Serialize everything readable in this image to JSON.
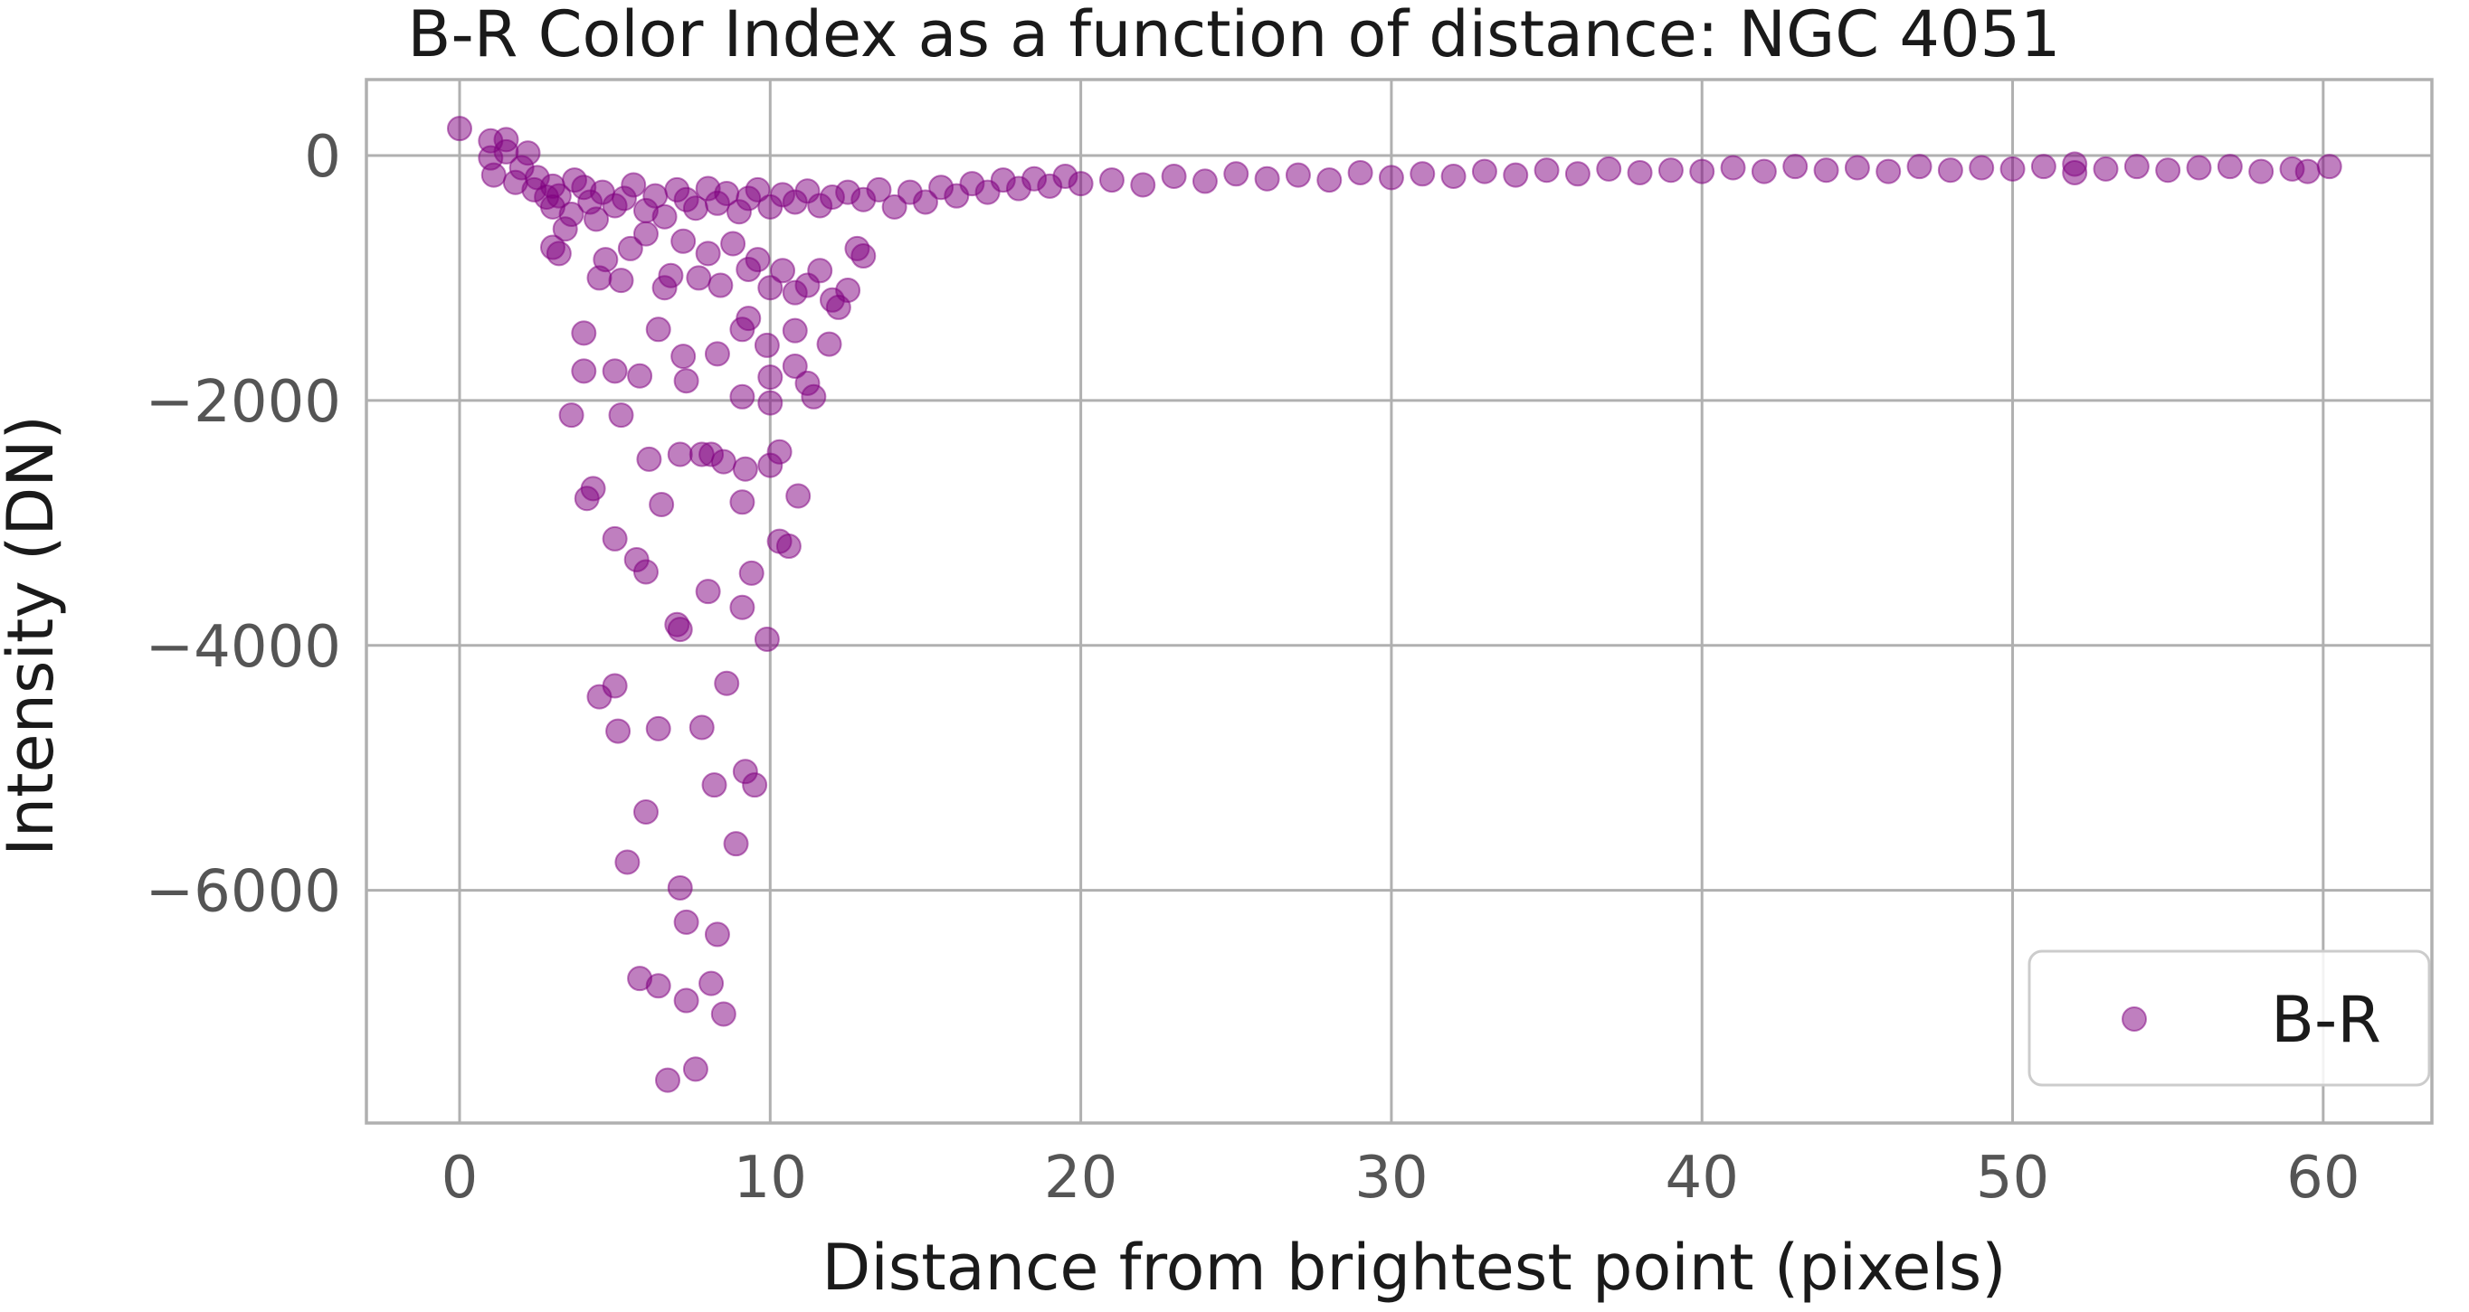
{
  "chart_data": {
    "type": "scatter",
    "title": "B-R Color Index as a function of distance: NGC 4051",
    "xlabel": "Distance from brightest point (pixels)",
    "ylabel": "Intensity (DN)",
    "xlim": [
      -3,
      63.5
    ],
    "ylim": [
      -7900,
      620
    ],
    "xticks": [
      0,
      10,
      20,
      30,
      40,
      50,
      60
    ],
    "yticks": [
      0,
      -2000,
      -4000,
      -6000
    ],
    "xtick_labels": [
      "0",
      "10",
      "20",
      "30",
      "40",
      "50",
      "60"
    ],
    "ytick_labels": [
      "0",
      "−2000",
      "−4000",
      "−6000"
    ],
    "grid": true,
    "legend": {
      "placement": "bottom-right",
      "entries": [
        "B-R"
      ]
    },
    "series": [
      {
        "name": "B-R",
        "color": "#800080",
        "alpha": 0.5,
        "points": [
          [
            0.0,
            220
          ],
          [
            1.0,
            120
          ],
          [
            1.0,
            -20
          ],
          [
            1.1,
            -160
          ],
          [
            1.5,
            130
          ],
          [
            1.5,
            30
          ],
          [
            1.8,
            -220
          ],
          [
            2.0,
            -100
          ],
          [
            2.2,
            20
          ],
          [
            2.4,
            -280
          ],
          [
            2.5,
            -180
          ],
          [
            2.8,
            -340
          ],
          [
            3.0,
            -420
          ],
          [
            3.0,
            -250
          ],
          [
            3.2,
            -330
          ],
          [
            3.4,
            -600
          ],
          [
            3.6,
            -480
          ],
          [
            3.7,
            -200
          ],
          [
            4.0,
            -260
          ],
          [
            4.2,
            -380
          ],
          [
            4.4,
            -520
          ],
          [
            4.6,
            -300
          ],
          [
            5.0,
            -410
          ],
          [
            5.3,
            -350
          ],
          [
            5.6,
            -240
          ],
          [
            6.0,
            -450
          ],
          [
            6.3,
            -330
          ],
          [
            6.6,
            -500
          ],
          [
            7.0,
            -280
          ],
          [
            7.3,
            -360
          ],
          [
            7.6,
            -430
          ],
          [
            8.0,
            -270
          ],
          [
            8.3,
            -390
          ],
          [
            8.6,
            -310
          ],
          [
            9.0,
            -460
          ],
          [
            9.3,
            -350
          ],
          [
            9.6,
            -280
          ],
          [
            10.0,
            -420
          ],
          [
            10.4,
            -320
          ],
          [
            10.8,
            -380
          ],
          [
            11.2,
            -290
          ],
          [
            11.6,
            -410
          ],
          [
            12.0,
            -340
          ],
          [
            12.5,
            -300
          ],
          [
            13.0,
            -360
          ],
          [
            13.5,
            -280
          ],
          [
            3.0,
            -750
          ],
          [
            3.2,
            -800
          ],
          [
            4.5,
            -1000
          ],
          [
            4.7,
            -850
          ],
          [
            5.2,
            -1020
          ],
          [
            5.5,
            -760
          ],
          [
            6.0,
            -640
          ],
          [
            6.6,
            -1080
          ],
          [
            6.8,
            -980
          ],
          [
            7.2,
            -700
          ],
          [
            7.7,
            -1000
          ],
          [
            8.0,
            -800
          ],
          [
            8.4,
            -1060
          ],
          [
            8.8,
            -720
          ],
          [
            9.3,
            -930
          ],
          [
            9.6,
            -850
          ],
          [
            10.0,
            -1080
          ],
          [
            10.4,
            -940
          ],
          [
            10.8,
            -1120
          ],
          [
            11.2,
            -1060
          ],
          [
            11.6,
            -940
          ],
          [
            12.0,
            -1180
          ],
          [
            12.2,
            -1240
          ],
          [
            12.5,
            -1100
          ],
          [
            12.8,
            -760
          ],
          [
            13.0,
            -820
          ],
          [
            4.0,
            -1450
          ],
          [
            4.0,
            -1760
          ],
          [
            3.6,
            -2120
          ],
          [
            5.0,
            -1760
          ],
          [
            5.2,
            -2120
          ],
          [
            5.8,
            -1800
          ],
          [
            6.1,
            -2480
          ],
          [
            6.4,
            -1420
          ],
          [
            7.2,
            -1640
          ],
          [
            7.3,
            -1840
          ],
          [
            8.3,
            -1620
          ],
          [
            9.1,
            -1420
          ],
          [
            9.3,
            -1330
          ],
          [
            9.9,
            -1550
          ],
          [
            10.0,
            -1810
          ],
          [
            10.0,
            -2020
          ],
          [
            9.1,
            -1970
          ],
          [
            10.8,
            -1430
          ],
          [
            10.8,
            -1720
          ],
          [
            11.2,
            -1860
          ],
          [
            11.4,
            -1970
          ],
          [
            11.9,
            -1540
          ],
          [
            4.1,
            -2800
          ],
          [
            4.3,
            -2720
          ],
          [
            5.0,
            -3130
          ],
          [
            5.7,
            -3300
          ],
          [
            6.0,
            -3400
          ],
          [
            6.5,
            -2850
          ],
          [
            7.1,
            -2440
          ],
          [
            7.8,
            -2440
          ],
          [
            8.1,
            -2440
          ],
          [
            8.5,
            -2500
          ],
          [
            9.1,
            -2830
          ],
          [
            9.2,
            -2560
          ],
          [
            10.0,
            -2530
          ],
          [
            10.3,
            -2420
          ],
          [
            10.3,
            -3150
          ],
          [
            10.6,
            -3190
          ],
          [
            10.9,
            -2780
          ],
          [
            7.0,
            -3830
          ],
          [
            7.1,
            -3870
          ],
          [
            8.0,
            -3560
          ],
          [
            9.1,
            -3690
          ],
          [
            9.4,
            -3410
          ],
          [
            9.9,
            -3950
          ],
          [
            4.5,
            -4420
          ],
          [
            5.0,
            -4330
          ],
          [
            5.1,
            -4700
          ],
          [
            6.4,
            -4680
          ],
          [
            7.8,
            -4670
          ],
          [
            8.6,
            -4310
          ],
          [
            9.2,
            -5030
          ],
          [
            9.5,
            -5140
          ],
          [
            8.2,
            -5140
          ],
          [
            6.0,
            -5360
          ],
          [
            8.9,
            -5620
          ],
          [
            5.4,
            -5770
          ],
          [
            7.1,
            -5980
          ],
          [
            7.3,
            -6260
          ],
          [
            8.3,
            -6360
          ],
          [
            5.8,
            -6720
          ],
          [
            6.4,
            -6780
          ],
          [
            7.3,
            -6900
          ],
          [
            8.1,
            -6760
          ],
          [
            8.5,
            -7010
          ],
          [
            6.7,
            -7550
          ],
          [
            7.6,
            -7460
          ],
          [
            14,
            -420
          ],
          [
            14.5,
            -300
          ],
          [
            15,
            -380
          ],
          [
            15.5,
            -260
          ],
          [
            16,
            -330
          ],
          [
            16.5,
            -230
          ],
          [
            17,
            -300
          ],
          [
            17.5,
            -200
          ],
          [
            18,
            -270
          ],
          [
            18.5,
            -190
          ],
          [
            19,
            -250
          ],
          [
            19.5,
            -170
          ],
          [
            20,
            -230
          ],
          [
            21,
            -200
          ],
          [
            22,
            -240
          ],
          [
            23,
            -170
          ],
          [
            24,
            -210
          ],
          [
            25,
            -150
          ],
          [
            26,
            -190
          ],
          [
            27,
            -160
          ],
          [
            28,
            -200
          ],
          [
            29,
            -140
          ],
          [
            30,
            -180
          ],
          [
            31,
            -150
          ],
          [
            32,
            -170
          ],
          [
            33,
            -130
          ],
          [
            34,
            -160
          ],
          [
            35,
            -120
          ],
          [
            36,
            -150
          ],
          [
            37,
            -110
          ],
          [
            38,
            -140
          ],
          [
            39,
            -120
          ],
          [
            40,
            -130
          ],
          [
            41,
            -100
          ],
          [
            42,
            -130
          ],
          [
            43,
            -90
          ],
          [
            44,
            -120
          ],
          [
            45,
            -100
          ],
          [
            46,
            -130
          ],
          [
            47,
            -90
          ],
          [
            48,
            -120
          ],
          [
            49,
            -100
          ],
          [
            50,
            -110
          ],
          [
            51,
            -90
          ],
          [
            52,
            -70
          ],
          [
            52,
            -140
          ],
          [
            53,
            -110
          ],
          [
            54,
            -90
          ],
          [
            55,
            -120
          ],
          [
            56,
            -100
          ],
          [
            57,
            -90
          ],
          [
            58,
            -130
          ],
          [
            59,
            -110
          ],
          [
            59.5,
            -130
          ],
          [
            60.2,
            -90
          ]
        ]
      }
    ]
  }
}
